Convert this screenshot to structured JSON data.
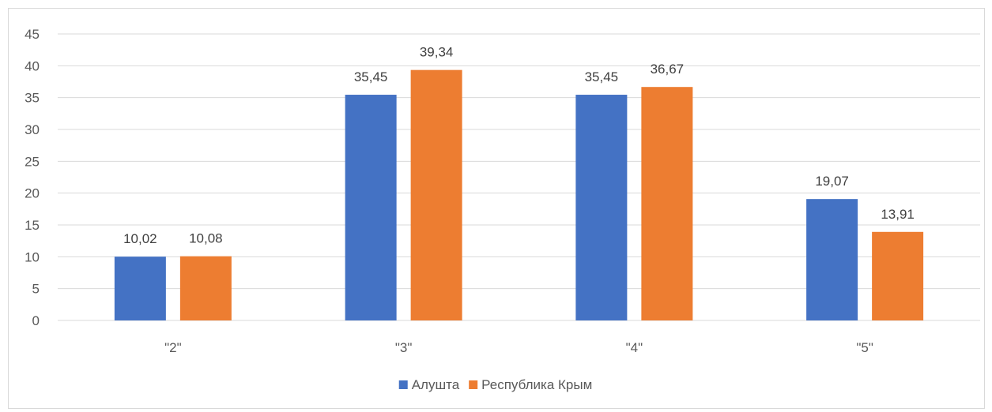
{
  "chart_data": {
    "type": "bar",
    "categories": [
      "\"2\"",
      "\"3\"",
      "\"4\"",
      "\"5\""
    ],
    "series": [
      {
        "name": "Алушта",
        "values": [
          10.02,
          35.45,
          35.45,
          19.07
        ],
        "color": "#4472C4"
      },
      {
        "name": "Республика Крым",
        "values": [
          10.08,
          39.34,
          36.67,
          13.91
        ],
        "color": "#ED7D31"
      }
    ],
    "data_labels": [
      [
        "10,02",
        "35,45",
        "35,45",
        "19,07"
      ],
      [
        "10,08",
        "39,34",
        "36,67",
        "13,91"
      ]
    ],
    "yticks": [
      "0",
      "5",
      "10",
      "15",
      "20",
      "25",
      "30",
      "35",
      "40",
      "45"
    ],
    "ylim": [
      0,
      45
    ],
    "grid": true,
    "gridColor": "#d9d9d9",
    "legend": "bottom",
    "title": "",
    "xlabel": "",
    "ylabel": ""
  }
}
